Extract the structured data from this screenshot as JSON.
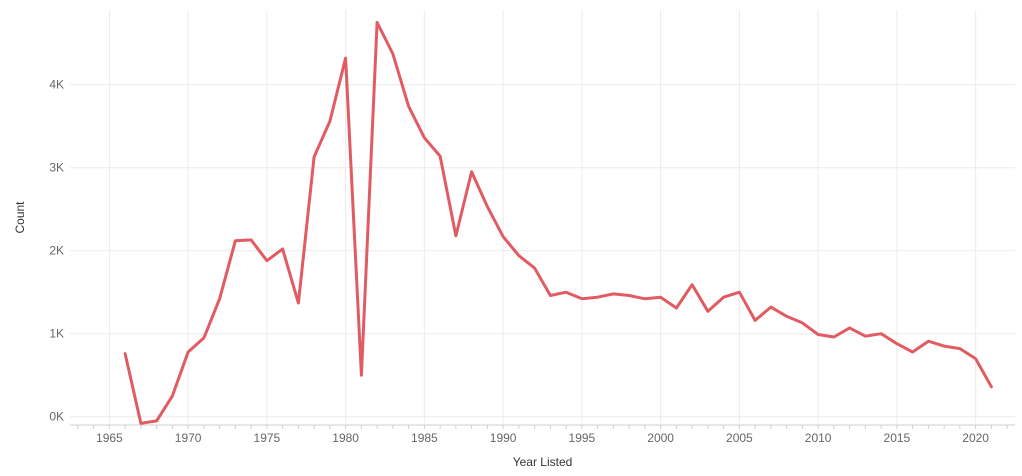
{
  "chart_data": {
    "type": "line",
    "xlabel": "Year Listed",
    "ylabel": "Count",
    "xlim": [
      1962.5,
      2022.5
    ],
    "ylim": [
      -100,
      4900
    ],
    "x_ticks": [
      1965,
      1970,
      1975,
      1980,
      1985,
      1990,
      1995,
      2000,
      2005,
      2010,
      2015,
      2020
    ],
    "x_tick_labels": [
      "1965",
      "1970",
      "1975",
      "1980",
      "1985",
      "1990",
      "1995",
      "2000",
      "2005",
      "2010",
      "2015",
      "2020"
    ],
    "y_ticks": [
      0,
      1000,
      2000,
      3000,
      4000
    ],
    "y_tick_labels": [
      "0K",
      "1K",
      "2K",
      "3K",
      "4K"
    ],
    "grid": true,
    "color": "#e05c62",
    "series": [
      {
        "x": [
          1966,
          1967,
          1968,
          1969,
          1970,
          1971,
          1972,
          1973,
          1974,
          1975,
          1976,
          1977,
          1978,
          1979,
          1980,
          1981,
          1982,
          1983,
          1984,
          1985,
          1986,
          1987,
          1988,
          1989,
          1990,
          1991,
          1992,
          1993,
          1994,
          1995,
          1996,
          1997,
          1998,
          1999,
          2000,
          2001,
          2002,
          2003,
          2004,
          2005,
          2006,
          2007,
          2008,
          2009,
          2010,
          2011,
          2012,
          2013,
          2014,
          2015,
          2016,
          2017,
          2018,
          2019,
          2020,
          2021
        ],
        "values": [
          760,
          -80,
          -50,
          250,
          780,
          950,
          1420,
          2120,
          2130,
          1880,
          2020,
          1370,
          3130,
          3560,
          4320,
          500,
          4750,
          4370,
          3740,
          3360,
          3140,
          2180,
          2950,
          2530,
          2170,
          1940,
          1790,
          1460,
          1500,
          1420,
          1440,
          1480,
          1460,
          1420,
          1440,
          1310,
          1590,
          1270,
          1440,
          1500,
          1160,
          1320,
          1210,
          1130,
          990,
          960,
          1070,
          970,
          1000,
          880,
          780,
          910,
          850,
          820,
          700,
          360
        ]
      }
    ]
  }
}
